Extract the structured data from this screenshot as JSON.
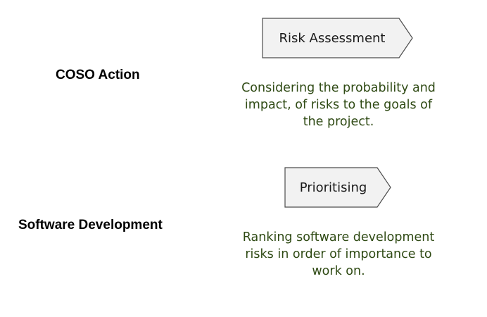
{
  "rows": [
    {
      "label": "COSO Action",
      "step": "Risk Assessment",
      "description_lines": [
        "Considering the probability and",
        "impact, of risks to the goals of",
        "the project."
      ]
    },
    {
      "label": "Software Development",
      "step": "Prioritising",
      "description_lines": [
        "Ranking software development",
        "risks in order of importance to",
        "work on."
      ]
    }
  ],
  "colors": {
    "label_text": "#000000",
    "step_box_fill": "#f2f2f2",
    "step_box_border": "#4d4d4d",
    "description_text": "#2f4a14"
  }
}
